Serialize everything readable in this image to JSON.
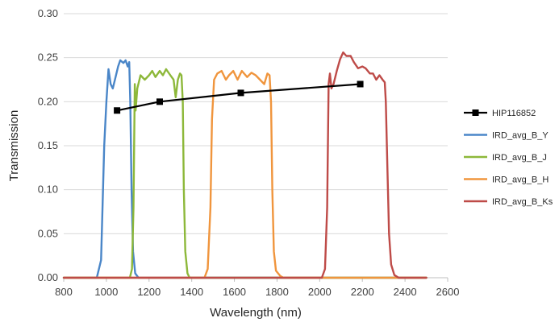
{
  "chart_data": {
    "type": "line",
    "title": "",
    "xlabel": "Wavelength (nm)",
    "ylabel": "Transmission",
    "xlim": [
      800,
      2600
    ],
    "ylim": [
      0,
      0.3
    ],
    "x_ticks": [
      "800",
      "1000",
      "1200",
      "1400",
      "1600",
      "1800",
      "2000",
      "2200",
      "2400",
      "2600"
    ],
    "y_ticks": [
      "0.00",
      "0.05",
      "0.10",
      "0.15",
      "0.20",
      "0.25",
      "0.30"
    ],
    "grid": true,
    "legend_position": "right",
    "series": [
      {
        "name": "HIP116852",
        "color": "#000000",
        "marker": "square",
        "points": [
          [
            1050,
            0.19
          ],
          [
            1250,
            0.2
          ],
          [
            1630,
            0.21
          ],
          [
            2190,
            0.22
          ]
        ]
      },
      {
        "name": "IRD_avg_B_Y",
        "color": "#4A86C8",
        "points": [
          [
            800,
            0
          ],
          [
            955,
            0
          ],
          [
            975,
            0.02
          ],
          [
            990,
            0.15
          ],
          [
            1000,
            0.2
          ],
          [
            1010,
            0.237
          ],
          [
            1020,
            0.22
          ],
          [
            1030,
            0.215
          ],
          [
            1040,
            0.225
          ],
          [
            1055,
            0.24
          ],
          [
            1065,
            0.247
          ],
          [
            1080,
            0.244
          ],
          [
            1090,
            0.247
          ],
          [
            1100,
            0.24
          ],
          [
            1107,
            0.245
          ],
          [
            1112,
            0.2
          ],
          [
            1118,
            0.1
          ],
          [
            1125,
            0.03
          ],
          [
            1135,
            0.005
          ],
          [
            1150,
            0
          ],
          [
            2500,
            0
          ]
        ]
      },
      {
        "name": "IRD_avg_B_J",
        "color": "#8DB83A",
        "points": [
          [
            800,
            0
          ],
          [
            1110,
            0
          ],
          [
            1120,
            0.01
          ],
          [
            1127,
            0.08
          ],
          [
            1133,
            0.22
          ],
          [
            1137,
            0.19
          ],
          [
            1145,
            0.215
          ],
          [
            1160,
            0.23
          ],
          [
            1180,
            0.225
          ],
          [
            1200,
            0.23
          ],
          [
            1215,
            0.235
          ],
          [
            1230,
            0.228
          ],
          [
            1250,
            0.235
          ],
          [
            1265,
            0.23
          ],
          [
            1280,
            0.237
          ],
          [
            1300,
            0.23
          ],
          [
            1315,
            0.225
          ],
          [
            1325,
            0.205
          ],
          [
            1335,
            0.225
          ],
          [
            1345,
            0.232
          ],
          [
            1352,
            0.23
          ],
          [
            1358,
            0.2
          ],
          [
            1363,
            0.1
          ],
          [
            1370,
            0.03
          ],
          [
            1380,
            0.005
          ],
          [
            1390,
            0
          ],
          [
            2500,
            0
          ]
        ]
      },
      {
        "name": "IRD_avg_B_H",
        "color": "#F0953D",
        "points": [
          [
            800,
            0
          ],
          [
            1460,
            0
          ],
          [
            1475,
            0.01
          ],
          [
            1488,
            0.08
          ],
          [
            1495,
            0.18
          ],
          [
            1505,
            0.225
          ],
          [
            1520,
            0.232
          ],
          [
            1540,
            0.235
          ],
          [
            1560,
            0.225
          ],
          [
            1575,
            0.23
          ],
          [
            1595,
            0.235
          ],
          [
            1615,
            0.225
          ],
          [
            1635,
            0.235
          ],
          [
            1660,
            0.228
          ],
          [
            1680,
            0.233
          ],
          [
            1700,
            0.23
          ],
          [
            1720,
            0.225
          ],
          [
            1740,
            0.22
          ],
          [
            1755,
            0.232
          ],
          [
            1765,
            0.23
          ],
          [
            1772,
            0.2
          ],
          [
            1778,
            0.1
          ],
          [
            1785,
            0.03
          ],
          [
            1795,
            0.008
          ],
          [
            1815,
            0.002
          ],
          [
            1830,
            0
          ],
          [
            2500,
            0
          ]
        ]
      },
      {
        "name": "IRD_avg_B_Ks",
        "color": "#BE4B48",
        "points": [
          [
            800,
            0
          ],
          [
            2010,
            0
          ],
          [
            2025,
            0.01
          ],
          [
            2035,
            0.08
          ],
          [
            2042,
            0.22
          ],
          [
            2048,
            0.232
          ],
          [
            2055,
            0.215
          ],
          [
            2065,
            0.22
          ],
          [
            2080,
            0.235
          ],
          [
            2095,
            0.248
          ],
          [
            2110,
            0.256
          ],
          [
            2125,
            0.252
          ],
          [
            2145,
            0.252
          ],
          [
            2160,
            0.245
          ],
          [
            2180,
            0.238
          ],
          [
            2200,
            0.24
          ],
          [
            2215,
            0.238
          ],
          [
            2235,
            0.232
          ],
          [
            2250,
            0.232
          ],
          [
            2265,
            0.225
          ],
          [
            2280,
            0.23
          ],
          [
            2295,
            0.225
          ],
          [
            2305,
            0.222
          ],
          [
            2310,
            0.2
          ],
          [
            2318,
            0.12
          ],
          [
            2325,
            0.05
          ],
          [
            2335,
            0.015
          ],
          [
            2350,
            0.003
          ],
          [
            2370,
            0
          ],
          [
            2500,
            0
          ]
        ]
      }
    ]
  }
}
